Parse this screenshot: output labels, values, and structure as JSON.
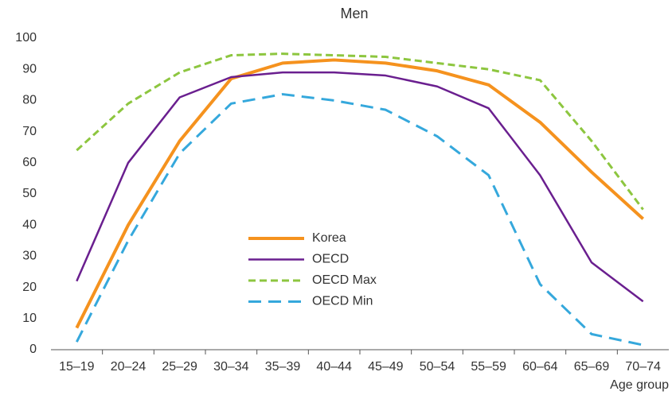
{
  "chart_data": {
    "type": "line",
    "title": "Men",
    "x_label": "Age group",
    "categories": [
      "15–19",
      "20–24",
      "25–29",
      "30–34",
      "35–39",
      "40–44",
      "45–49",
      "50–54",
      "55–59",
      "60–64",
      "65–69",
      "70–74"
    ],
    "series": [
      {
        "name": "Korea",
        "color": "#f5921e",
        "values": [
          7,
          40,
          67,
          87,
          92,
          93,
          92,
          89.5,
          85,
          73,
          57,
          42
        ]
      },
      {
        "name": "OECD",
        "color": "#6a1f8f",
        "values": [
          22,
          60,
          81,
          87.5,
          89,
          89,
          88,
          84.5,
          77.5,
          56,
          28,
          15.5
        ]
      },
      {
        "name": "OECD Max",
        "color": "#8dc63f",
        "values": [
          64,
          79,
          89,
          94.5,
          95,
          94.5,
          94,
          92,
          90,
          86.5,
          67,
          45
        ]
      },
      {
        "name": "OECD Min",
        "color": "#35a8dc",
        "values": [
          2.5,
          35,
          63,
          79,
          82,
          80,
          77,
          68.5,
          56,
          21,
          5,
          1.5
        ]
      }
    ],
    "ylim": [
      0,
      100
    ],
    "yticks": [
      0,
      10,
      20,
      30,
      40,
      50,
      60,
      70,
      80,
      90,
      100
    ],
    "grid": false
  }
}
